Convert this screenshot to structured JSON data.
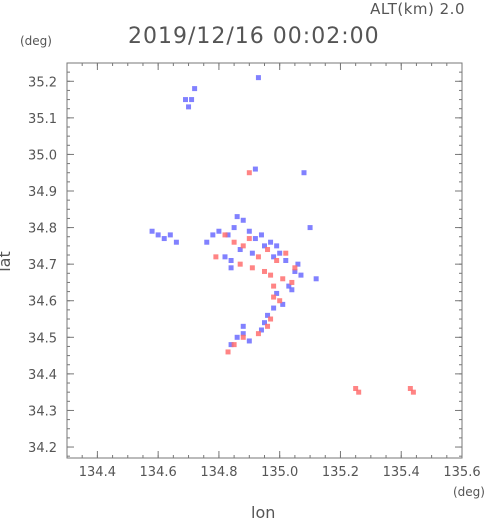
{
  "header": {
    "altitude": "ALT(km) 2.0",
    "datetime": "2019/12/16 00:02:00"
  },
  "axes": {
    "x_label": "lon",
    "y_label": "lat",
    "x_unit": "(deg)",
    "y_unit": "(deg)"
  },
  "chart_data": {
    "type": "scatter",
    "title": "2019/12/16 00:02:00",
    "xlabel": "lon",
    "ylabel": "lat",
    "xlim": [
      134.3,
      135.6
    ],
    "ylim": [
      34.17,
      35.25
    ],
    "x_ticks": [
      134.4,
      134.6,
      134.8,
      135.0,
      135.2,
      135.4,
      135.6
    ],
    "x_tick_labels": [
      "134.4",
      "134.6",
      "134.8",
      "135.0",
      "135.2",
      "135.4",
      "135.6"
    ],
    "y_ticks": [
      34.2,
      34.3,
      34.4,
      34.5,
      34.6,
      34.7,
      34.8,
      34.9,
      35.0,
      35.1,
      35.2
    ],
    "y_tick_labels": [
      "34.2",
      "34.3",
      "34.4",
      "34.5",
      "34.6",
      "34.7",
      "34.8",
      "34.9",
      "35.0",
      "35.1",
      "35.2"
    ],
    "grid": false,
    "series": [
      {
        "color": "#6b6bff",
        "x": [
          134.69,
          134.7,
          134.71,
          134.72,
          134.93,
          134.6,
          134.62,
          134.64,
          134.66,
          134.58,
          134.76,
          134.78,
          134.8,
          134.83,
          134.85,
          134.86,
          134.88,
          134.9,
          134.92,
          134.94,
          134.97,
          134.99,
          134.82,
          134.84,
          134.87,
          134.91,
          134.95,
          134.98,
          135.0,
          135.02,
          135.05,
          135.06,
          135.07,
          135.12,
          134.84,
          134.92,
          135.08,
          135.1,
          135.03,
          134.99,
          135.04,
          134.98,
          135.01,
          134.95,
          134.96,
          134.94,
          134.88,
          134.9,
          134.86,
          134.84,
          134.88
        ],
        "y": [
          35.15,
          35.13,
          35.15,
          35.18,
          35.21,
          34.78,
          34.77,
          34.78,
          34.76,
          34.79,
          34.76,
          34.78,
          34.79,
          34.78,
          34.8,
          34.83,
          34.82,
          34.79,
          34.77,
          34.78,
          34.76,
          34.75,
          34.72,
          34.71,
          34.74,
          34.73,
          34.75,
          34.72,
          34.73,
          34.71,
          34.68,
          34.7,
          34.67,
          34.66,
          34.69,
          34.96,
          34.95,
          34.8,
          34.64,
          34.62,
          34.63,
          34.58,
          34.59,
          34.54,
          34.56,
          34.52,
          34.51,
          34.49,
          34.5,
          34.48,
          34.53
        ]
      },
      {
        "color": "#ff6e6e",
        "x": [
          134.79,
          134.82,
          134.85,
          134.88,
          134.9,
          134.93,
          134.96,
          134.99,
          135.02,
          134.87,
          134.91,
          134.95,
          134.97,
          135.01,
          135.04,
          134.98,
          135.0,
          134.97,
          134.96,
          134.93,
          134.88,
          134.85,
          134.83,
          135.25,
          135.26,
          135.43,
          135.44,
          134.9,
          135.05,
          134.98
        ],
        "y": [
          34.72,
          34.78,
          34.76,
          34.75,
          34.77,
          34.72,
          34.74,
          34.71,
          34.73,
          34.7,
          34.69,
          34.68,
          34.67,
          34.66,
          34.65,
          34.61,
          34.6,
          34.55,
          34.53,
          34.51,
          34.5,
          34.48,
          34.46,
          34.36,
          34.35,
          34.36,
          34.35,
          34.95,
          34.69,
          34.64
        ]
      }
    ]
  }
}
